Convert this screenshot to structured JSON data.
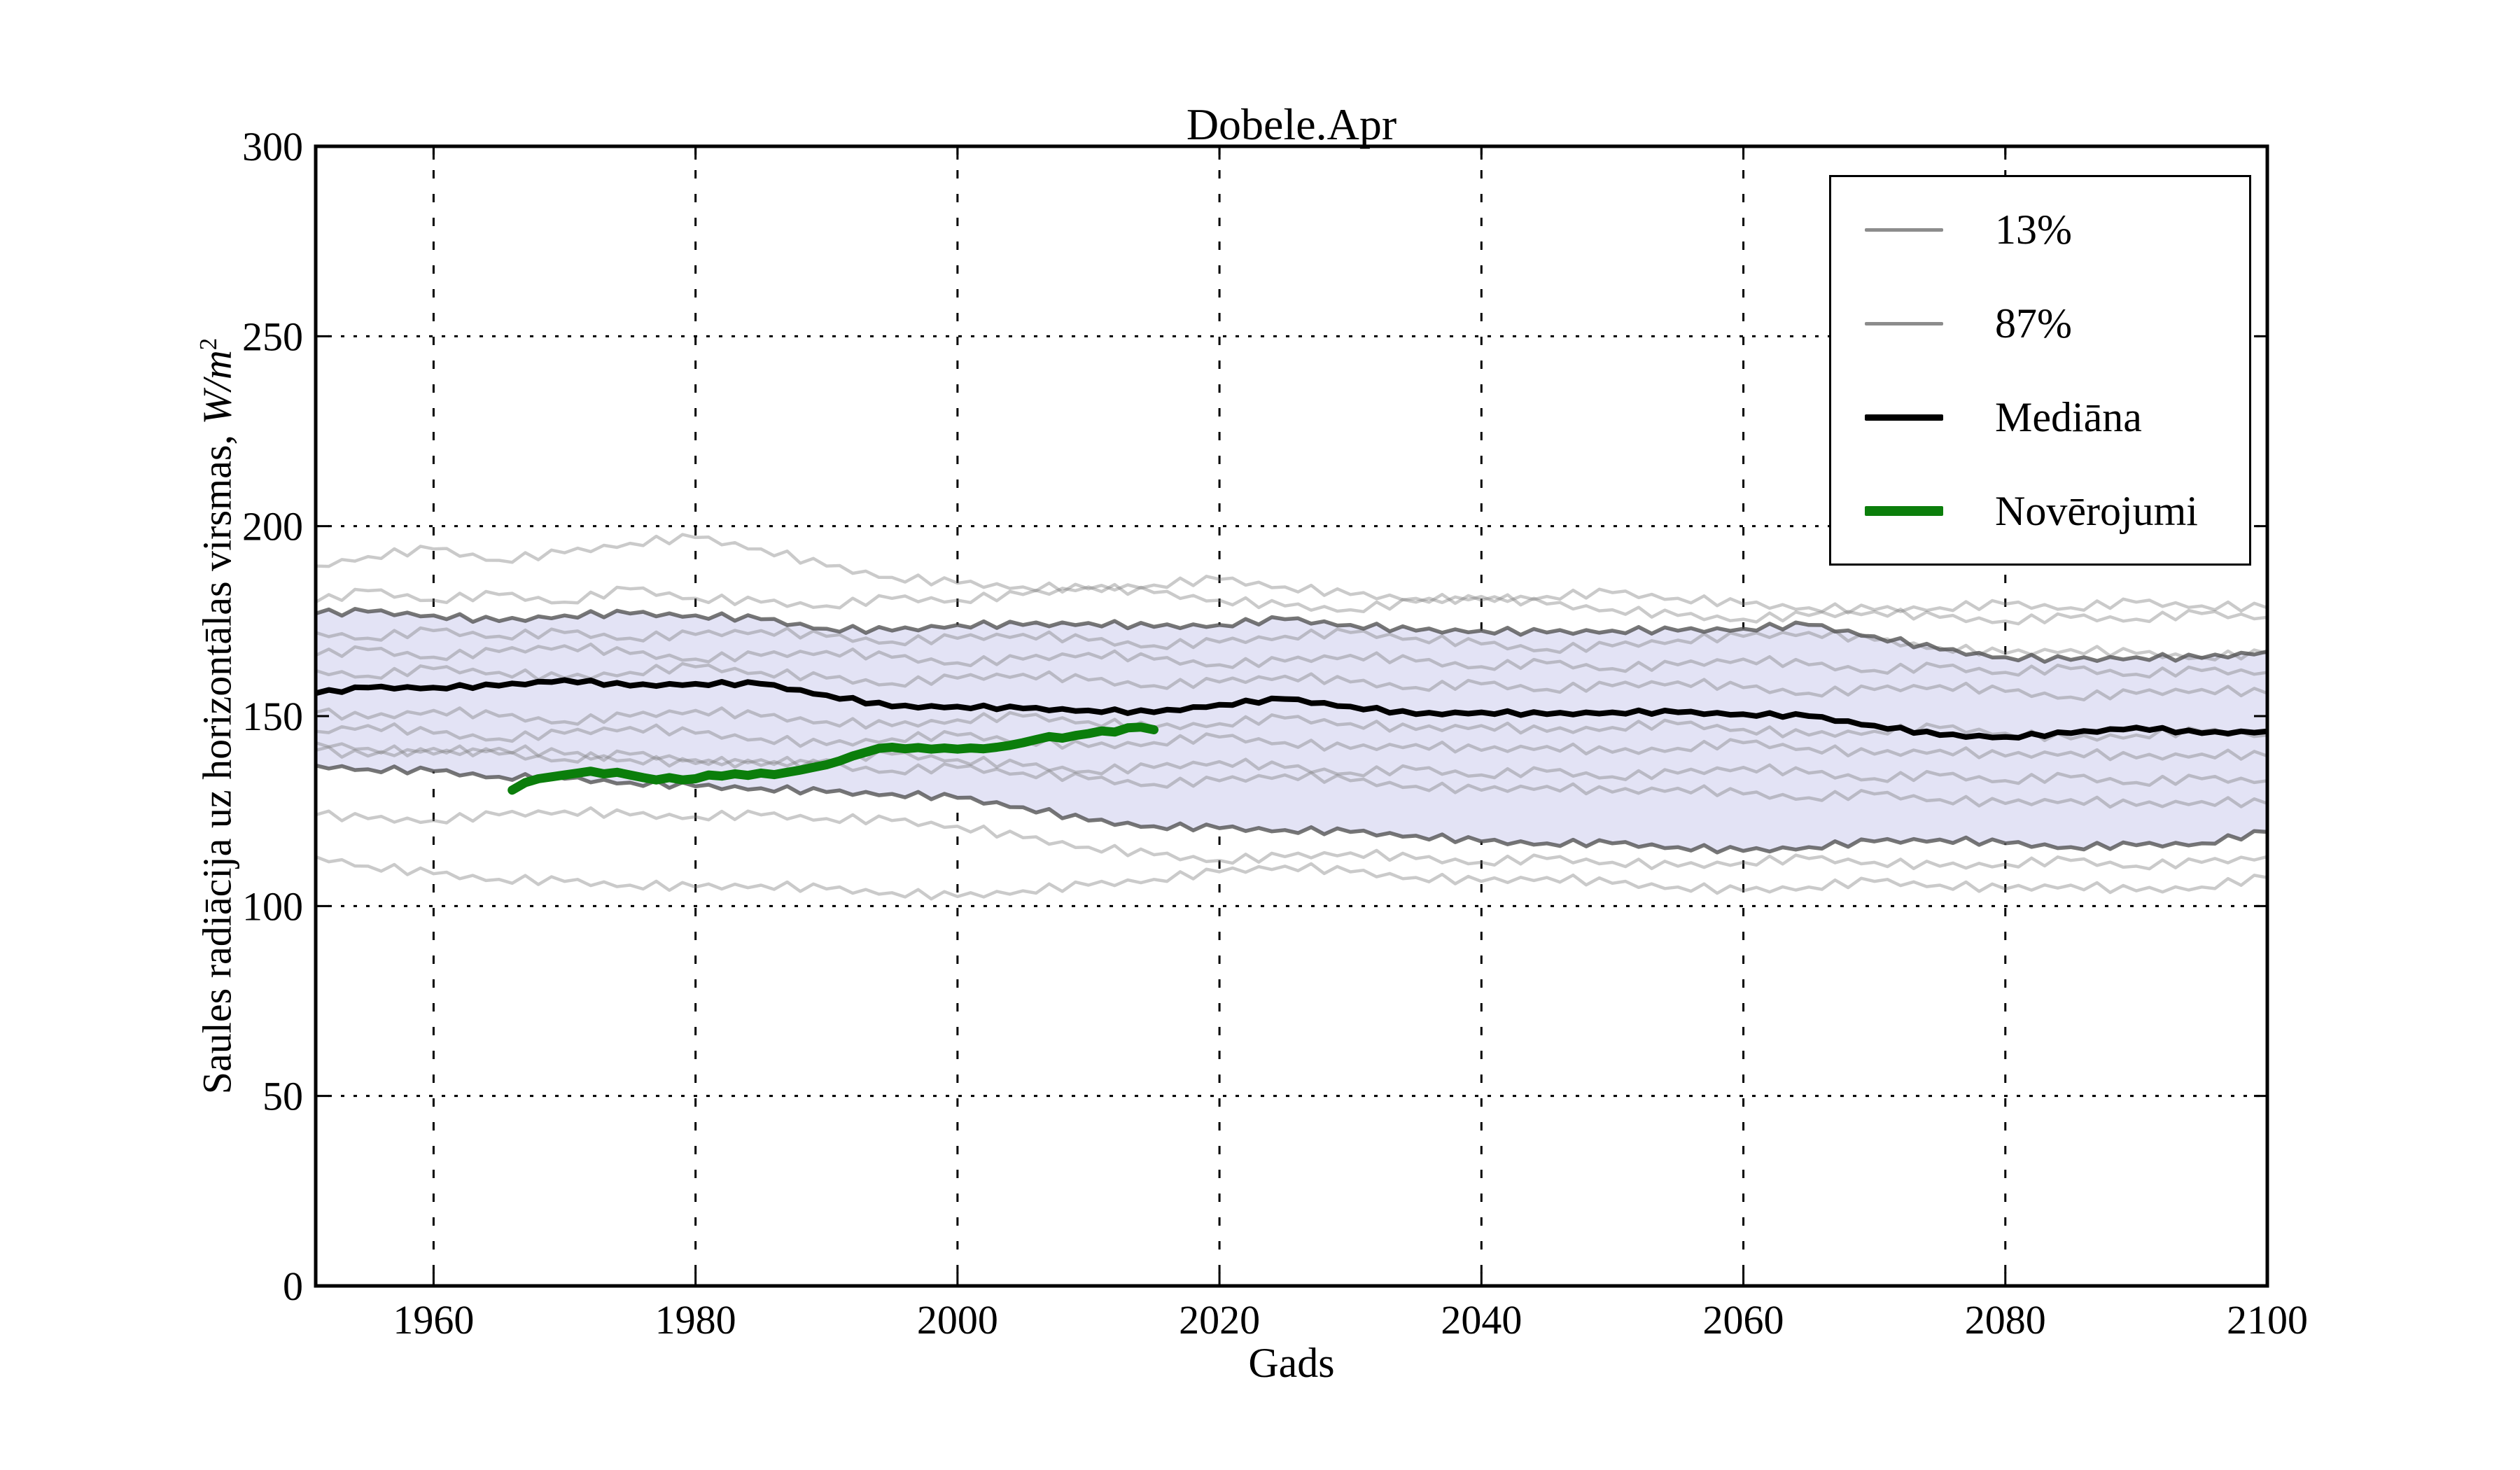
{
  "title": "Dobele.Apr",
  "x_axis_label": "Gads",
  "y_axis_label": {
    "full": "Saules radiācija uz horizontālas virsmas, W/m²",
    "prefix": "Saules radiācija uz horizontālas virsmas, ",
    "math": "W/m",
    "sup": "2"
  },
  "legend": {
    "items": [
      {
        "label": "13%",
        "color": "#8c8c8c",
        "thickness": 5
      },
      {
        "label": "87%",
        "color": "#8c8c8c",
        "thickness": 5
      },
      {
        "label": "Mediāna",
        "color": "#000000",
        "thickness": 9
      },
      {
        "label": "Novērojumi",
        "color": "#0b7e0b",
        "thickness": 14
      }
    ]
  },
  "colors": {
    "band_fill": "#e3e3f5",
    "ensemble_line": "rgba(122,122,122,0.40)",
    "percentile_line": "rgba(80,80,80,0.78)",
    "median_line": "#000000",
    "observations_line": "#0b7e0b",
    "grid": "#000000",
    "spine": "#000000"
  },
  "chart_data": {
    "type": "line",
    "title": "Dobele.Apr",
    "xlabel": "Gads",
    "ylabel": "Saules radiācija uz horizontālas virsmas, W/m²",
    "xlim": [
      1951,
      2100
    ],
    "ylim": [
      0,
      300
    ],
    "xticks": [
      1960,
      1980,
      2000,
      2020,
      2040,
      2060,
      2080,
      2100
    ],
    "yticks": [
      0,
      50,
      100,
      150,
      200,
      250,
      300
    ],
    "grid": true,
    "legend_position": "upper right",
    "x": [
      1951,
      1955,
      1960,
      1965,
      1970,
      1975,
      1980,
      1985,
      1990,
      1995,
      2000,
      2005,
      2010,
      2015,
      2020,
      2025,
      2030,
      2035,
      2040,
      2045,
      2050,
      2055,
      2060,
      2065,
      2070,
      2075,
      2080,
      2085,
      2090,
      2095,
      2100
    ],
    "series": [
      {
        "name": "87%",
        "role": "percentile-upper",
        "values": [
          177,
          177.5,
          176.5,
          175,
          176.5,
          177,
          176.5,
          175.5,
          173,
          172.5,
          174,
          174,
          174.5,
          173.5,
          174,
          175.5,
          174,
          172.5,
          172.5,
          172,
          172.5,
          172.5,
          173,
          174,
          171,
          167.5,
          165.5,
          164.8,
          165.5,
          165.3,
          167
        ]
      },
      {
        "name": "13%",
        "role": "percentile-lower",
        "values": [
          137,
          136,
          135.5,
          134,
          133.5,
          132.5,
          131.5,
          131,
          130,
          129.5,
          128.5,
          126,
          122.5,
          121,
          120.5,
          120,
          119.5,
          118.5,
          117,
          116.5,
          116.5,
          115.5,
          114.5,
          115.5,
          117,
          117.5,
          116.5,
          115.5,
          116,
          116.5,
          119.5
        ]
      },
      {
        "name": "Mediāna",
        "role": "median",
        "values": [
          156,
          157.5,
          157.5,
          158,
          159.5,
          158,
          158.5,
          158.5,
          155.5,
          152.5,
          152.5,
          152,
          151.5,
          151,
          153,
          154.5,
          152.5,
          150.5,
          151,
          150.5,
          151,
          151,
          150.5,
          150,
          147.5,
          145,
          144.5,
          145.5,
          147,
          145.5,
          146
        ]
      },
      {
        "name": "ensemble-1",
        "role": "ensemble",
        "values": [
          189.5,
          192,
          194,
          191,
          193,
          195.5,
          197,
          194,
          189.5,
          186.5,
          185,
          184,
          183.5,
          184.5,
          186,
          184,
          182,
          181,
          180.5,
          181.5,
          182.5,
          181,
          179.5,
          178.5,
          178,
          178.5,
          179.5,
          178.5,
          180,
          179,
          178.5
        ]
      },
      {
        "name": "ensemble-2",
        "role": "ensemble",
        "values": [
          180,
          183,
          180.5,
          182,
          180,
          183.5,
          181,
          180,
          179,
          181,
          180.5,
          182,
          184,
          182.5,
          180.5,
          179,
          178,
          180,
          181.5,
          179.5,
          178,
          176.5,
          175.5,
          176.5,
          177.5,
          176,
          175,
          176,
          175.5,
          177,
          176
        ]
      },
      {
        "name": "ensemble-3",
        "role": "ensemble",
        "values": [
          172,
          170.5,
          172.5,
          171,
          172,
          170.5,
          171.5,
          172.5,
          171,
          169.5,
          170.5,
          171.5,
          170,
          168.5,
          169.5,
          171,
          172,
          170.5,
          169,
          167.5,
          168.5,
          170,
          171,
          172,
          170,
          168,
          166.5,
          167.5,
          166.5,
          165.5,
          166.5
        ]
      },
      {
        "name": "ensemble-4",
        "role": "ensemble",
        "values": [
          166,
          167.5,
          165.5,
          167,
          168.5,
          166.5,
          165,
          166,
          167,
          165.5,
          164,
          165,
          166.5,
          165,
          163.5,
          164.5,
          166,
          164.5,
          163,
          164,
          162.5,
          163.5,
          165,
          163.5,
          162,
          163,
          161.5,
          162.5,
          161,
          162,
          161.5
        ]
      },
      {
        "name": "ensemble-5",
        "role": "ensemble",
        "values": [
          162,
          160.5,
          162.5,
          161.5,
          160,
          161.5,
          163,
          161.5,
          160,
          158.5,
          160,
          161,
          159.5,
          158,
          159,
          160.5,
          159,
          157.5,
          158.5,
          157,
          158,
          159,
          157.5,
          156,
          157,
          158,
          156.5,
          155,
          156,
          157,
          156
        ]
      },
      {
        "name": "ensemble-6",
        "role": "ensemble",
        "values": [
          151,
          149.5,
          151.5,
          150,
          148.5,
          150,
          151.5,
          150,
          148.5,
          147.5,
          149,
          150,
          148.5,
          147,
          148,
          149.5,
          148,
          146.5,
          147.5,
          146,
          147,
          148,
          146.5,
          145,
          146,
          147,
          145.5,
          144,
          145,
          146,
          145
        ]
      },
      {
        "name": "ensemble-7",
        "role": "ensemble",
        "values": [
          146,
          147.5,
          145.5,
          144,
          145.5,
          147,
          145.5,
          144,
          142.5,
          144,
          145,
          143.5,
          142,
          143,
          144.5,
          143,
          141.5,
          142.5,
          141,
          142,
          140.5,
          141.5,
          143,
          141.5,
          140,
          141,
          139.5,
          140.5,
          139,
          140,
          139.5
        ]
      },
      {
        "name": "ensemble-8",
        "role": "ensemble",
        "values": [
          141,
          139.5,
          141.5,
          140,
          138.5,
          140,
          138.5,
          137,
          138.5,
          140,
          138.5,
          137,
          135.5,
          136.5,
          138,
          136.5,
          135,
          136,
          134.5,
          135.5,
          134,
          135,
          136.5,
          135,
          133.5,
          134.5,
          133,
          134,
          132.5,
          133.5,
          133
        ]
      },
      {
        "name": "ensemble-9",
        "role": "ensemble",
        "values": [
          143,
          141.5,
          140,
          141.5,
          140,
          138.5,
          137.5,
          138.5,
          137,
          135.5,
          136.5,
          135,
          133.5,
          132,
          133,
          134.5,
          133,
          131.5,
          130.5,
          131.5,
          130,
          131,
          129.5,
          128.5,
          129.5,
          128,
          127,
          128,
          126.5,
          127.5,
          127
        ]
      },
      {
        "name": "ensemble-10",
        "role": "ensemble",
        "values": [
          124,
          123,
          122.5,
          124,
          125,
          124,
          123.5,
          124,
          123,
          122.5,
          121,
          118,
          115.5,
          113.5,
          112,
          113,
          114,
          112.5,
          111.5,
          112.5,
          111.5,
          110.5,
          111.5,
          112.5,
          111.5,
          110.5,
          111,
          112,
          110.5,
          111.5,
          113
        ]
      },
      {
        "name": "ensemble-11",
        "role": "ensemble",
        "values": [
          113,
          110.5,
          108.5,
          107,
          106.5,
          105.5,
          105,
          105.5,
          104.5,
          103.5,
          102.5,
          104,
          105.5,
          107,
          109,
          110.5,
          109,
          107.5,
          106.5,
          107.5,
          106,
          105,
          104,
          105,
          106.5,
          105.5,
          104.5,
          105.5,
          104,
          105,
          107.5
        ]
      }
    ],
    "observations": {
      "name": "Novērojumi",
      "x_start": 1966,
      "x_step": 1,
      "values": [
        130.5,
        132.5,
        133.5,
        134,
        134.5,
        135,
        135.5,
        134.8,
        135.2,
        134.5,
        133.8,
        133.2,
        133.8,
        133.2,
        133.5,
        134.5,
        134.2,
        134.8,
        134.4,
        135,
        134.6,
        135.2,
        135.8,
        136.5,
        137.2,
        138.2,
        139.5,
        140.5,
        141.5,
        141.8,
        141.4,
        141.7,
        141.3,
        141.6,
        141.3,
        141.6,
        141.4,
        141.8,
        142.3,
        143,
        143.8,
        144.6,
        144.2,
        144.9,
        145.4,
        146.1,
        145.8,
        146.9,
        147.1,
        146.4
      ]
    },
    "band": {
      "between": [
        "13%",
        "87%"
      ],
      "fill": "#e3e3f5"
    },
    "wiggle_pattern": [
      0.7,
      -0.55,
      0.85,
      -0.7,
      0.35,
      -0.6,
      0.95,
      -0.45,
      0.55,
      -0.8
    ]
  }
}
